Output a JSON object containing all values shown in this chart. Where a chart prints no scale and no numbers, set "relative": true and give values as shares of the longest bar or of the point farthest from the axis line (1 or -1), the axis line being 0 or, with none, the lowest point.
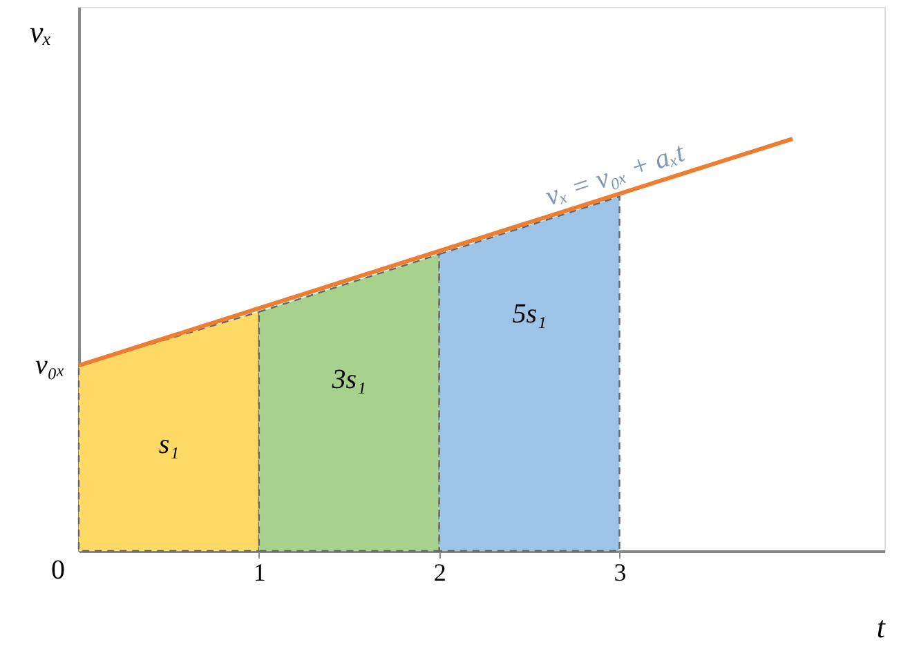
{
  "chart_data": {
    "type": "area",
    "relative": true,
    "xlabel": "t",
    "ylabel": "vₓ",
    "tick_labels": "x",
    "grid": false,
    "xlim": [
      0,
      4.47
    ],
    "xticks": [
      1,
      2,
      3
    ],
    "series": [
      {
        "color": "#ffd966",
        "x": [
          0,
          1
        ],
        "values": [
          0.45,
          0.58
        ]
      },
      {
        "color": "#a9d18e",
        "x": [
          1,
          2
        ],
        "values": [
          0.58,
          0.72
        ]
      },
      {
        "color": "#9dc3e6",
        "x": [
          2,
          3
        ],
        "values": [
          0.72,
          0.86
        ]
      },
      {
        "type": "line",
        "color": "#ed7d31",
        "x": [
          0,
          3.96
        ],
        "values": [
          0.45,
          1
        ]
      }
    ],
    "annotations": [
      {
        "text": "0",
        "x": 0,
        "y": 0
      },
      {
        "text": "v₀ₓ",
        "x": 0,
        "y": 0.45
      },
      "s₁",
      "3s₁",
      "5s₁",
      "vₓ = v₀ₓ + aₓt"
    ]
  }
}
